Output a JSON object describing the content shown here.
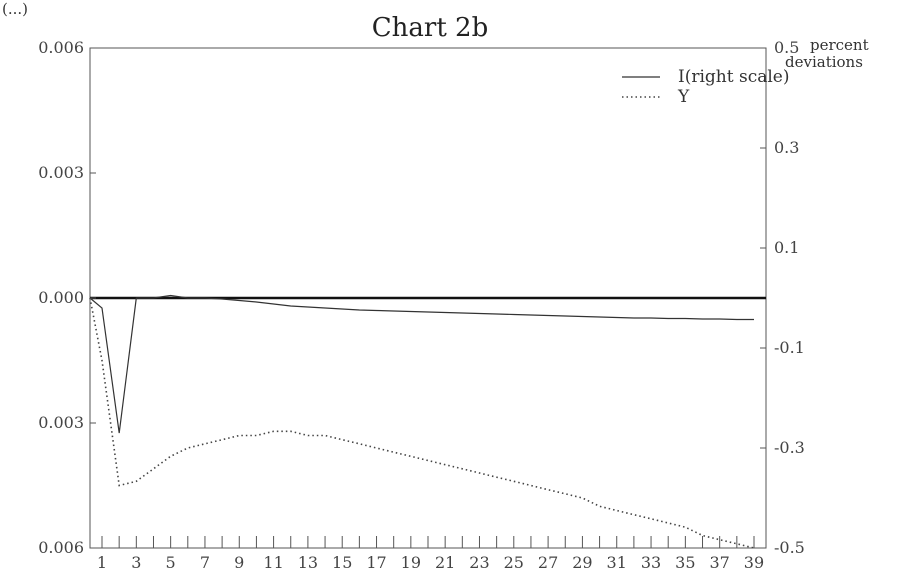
{
  "corner_label": "(...)",
  "chart_data": {
    "type": "line",
    "title": "Chart 2b",
    "right_axis_label_line1": "percent",
    "right_axis_label_line2": "deviations",
    "x": [
      1,
      2,
      3,
      4,
      5,
      6,
      7,
      8,
      9,
      10,
      11,
      12,
      13,
      14,
      15,
      16,
      17,
      18,
      19,
      20,
      21,
      22,
      23,
      24,
      25,
      26,
      27,
      28,
      29,
      30,
      31,
      32,
      33,
      34,
      35,
      36,
      37,
      38,
      39
    ],
    "x_tick_labels": [
      "1",
      "3",
      "5",
      "7",
      "9",
      "11",
      "13",
      "15",
      "17",
      "19",
      "21",
      "23",
      "25",
      "27",
      "29",
      "31",
      "33",
      "35",
      "37",
      "39"
    ],
    "left_axis": {
      "ylim": [
        -0.006,
        0.006
      ],
      "tick_labels": [
        "0.006",
        "0.003",
        "0.000",
        "0.003",
        "0.006"
      ]
    },
    "right_axis": {
      "ylim": [
        -0.5,
        0.5
      ],
      "tick_labels": [
        "0.5",
        "0.3",
        "0.1",
        "-0.1",
        "-0.3",
        "-0.5"
      ]
    },
    "legend_position": "top-right",
    "grid": false,
    "series": [
      {
        "name": "I(right scale)",
        "axis": "right",
        "style": "solid",
        "color": "#333333",
        "values": [
          -0.02,
          -0.27,
          0.0,
          0.0,
          0.005,
          0.0,
          0.0,
          -0.002,
          -0.005,
          -0.008,
          -0.012,
          -0.016,
          -0.018,
          -0.02,
          -0.022,
          -0.024,
          -0.025,
          -0.026,
          -0.027,
          -0.028,
          -0.029,
          -0.03,
          -0.031,
          -0.032,
          -0.033,
          -0.034,
          -0.035,
          -0.036,
          -0.037,
          -0.038,
          -0.039,
          -0.04,
          -0.04,
          -0.041,
          -0.041,
          -0.042,
          -0.042,
          -0.043,
          -0.043
        ]
      },
      {
        "name": "Y",
        "axis": "left",
        "style": "dotted",
        "color": "#444444",
        "values": [
          -0.0015,
          -0.0045,
          -0.0044,
          -0.0041,
          -0.0038,
          -0.0036,
          -0.0035,
          -0.0034,
          -0.0033,
          -0.0033,
          -0.0032,
          -0.0032,
          -0.0033,
          -0.0033,
          -0.0034,
          -0.0035,
          -0.0036,
          -0.0037,
          -0.0038,
          -0.0039,
          -0.004,
          -0.0041,
          -0.0042,
          -0.0043,
          -0.0044,
          -0.0045,
          -0.0046,
          -0.0047,
          -0.0048,
          -0.005,
          -0.0051,
          -0.0052,
          -0.0053,
          -0.0054,
          -0.0055,
          -0.0057,
          -0.0058,
          -0.0059,
          -0.006
        ]
      }
    ]
  }
}
